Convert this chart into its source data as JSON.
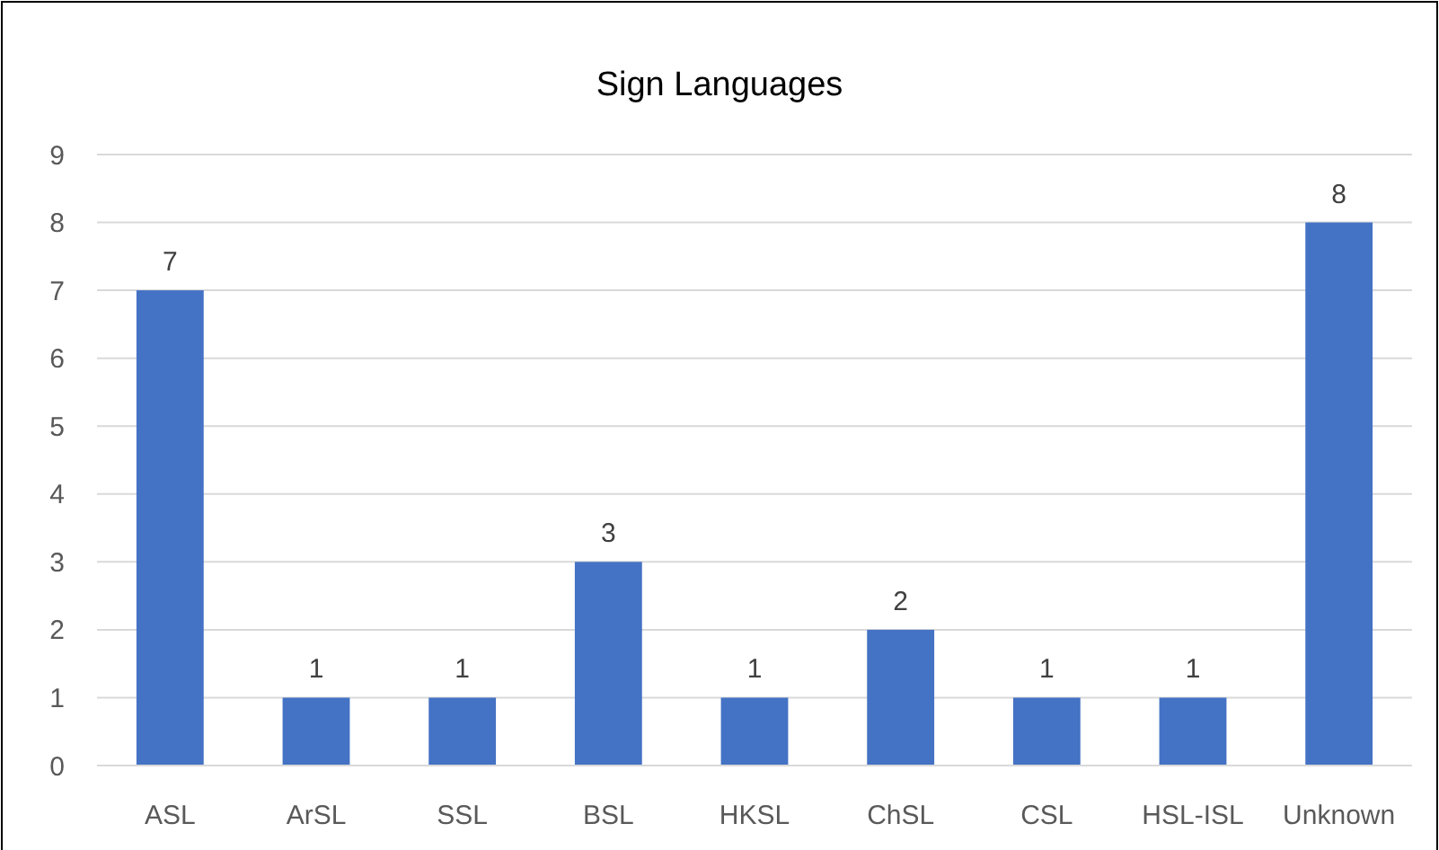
{
  "chart_data": {
    "type": "bar",
    "title": "Sign Languages",
    "categories": [
      "ASL",
      "ArSL",
      "SSL",
      "BSL",
      "HKSL",
      "ChSL",
      "CSL",
      "HSL-ISL",
      "Unknown"
    ],
    "values": [
      7,
      1,
      1,
      3,
      1,
      2,
      1,
      1,
      8
    ],
    "color": "#4472c4",
    "ylim": [
      0,
      9
    ],
    "yticks": [
      0,
      1,
      2,
      3,
      4,
      5,
      6,
      7,
      8,
      9
    ],
    "grid": "y",
    "data_labels": true
  }
}
